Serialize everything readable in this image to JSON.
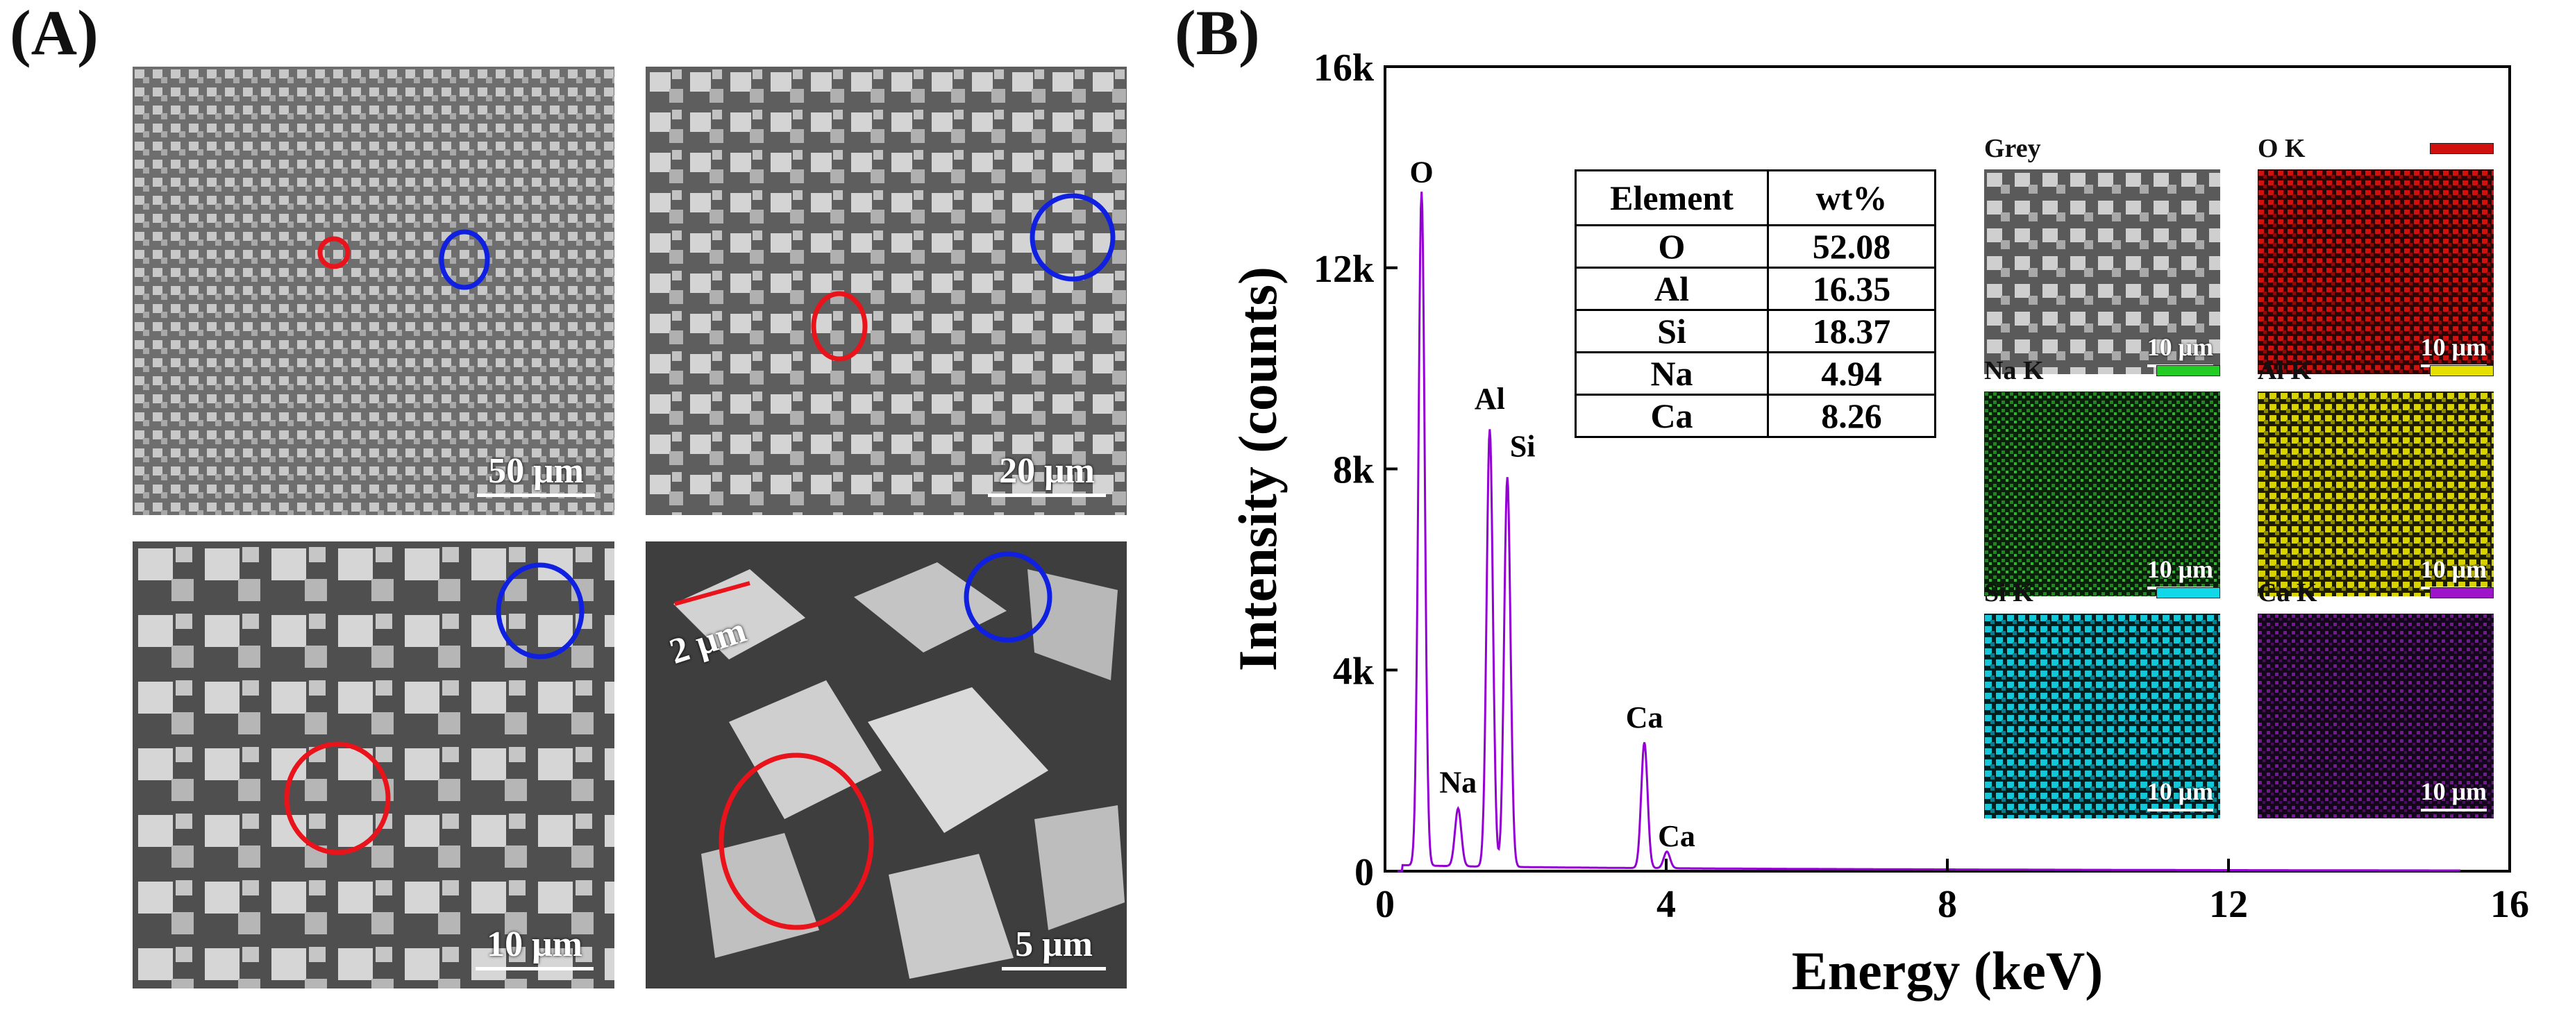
{
  "panels": {
    "a_label": "(A)",
    "b_label": "(B)"
  },
  "sem_images": [
    {
      "scale": "50 μm"
    },
    {
      "scale": "20 μm"
    },
    {
      "scale": "10 μm"
    },
    {
      "scale": "5 μm",
      "measure": "2 μm"
    }
  ],
  "colors": {
    "spectrum": "#9400d3",
    "marker_red": "#e8131b",
    "marker_blue": "#1020e0",
    "O": "#d11010",
    "Na": "#22cc22",
    "Al": "#e6e000",
    "Si": "#10d8e8",
    "Ca": "#9e14c8"
  },
  "table": {
    "headers": [
      "Element",
      "wt%"
    ],
    "rows": [
      [
        "O",
        "52.08"
      ],
      [
        "Al",
        "16.35"
      ],
      [
        "Si",
        "18.37"
      ],
      [
        "Na",
        "4.94"
      ],
      [
        "Ca",
        "8.26"
      ]
    ]
  },
  "maps": [
    {
      "title": "Grey",
      "scale": "10 μm",
      "key": "Grey"
    },
    {
      "title": "O K",
      "scale": "10 μm",
      "key": "O"
    },
    {
      "title": "Na K",
      "scale": "10 μm",
      "key": "Na"
    },
    {
      "title": "Al K",
      "scale": "10 μm",
      "key": "Al"
    },
    {
      "title": "Si K",
      "scale": "10 μm",
      "key": "Si"
    },
    {
      "title": "Ca K",
      "scale": "10 μm",
      "key": "Ca"
    }
  ],
  "chart_data": {
    "type": "line",
    "title": "",
    "xlabel": "Energy (keV)",
    "ylabel": "Intensity (counts)",
    "xlim": [
      0,
      16
    ],
    "ylim": [
      0,
      16000
    ],
    "xticks": [
      0,
      4,
      8,
      12,
      16
    ],
    "xtick_labels": [
      "0",
      "4",
      "8",
      "12",
      "16"
    ],
    "yticks": [
      0,
      4000,
      8000,
      12000,
      16000
    ],
    "ytick_labels": [
      "0",
      "4k",
      "8k",
      "12k",
      "16k"
    ],
    "peaks": [
      {
        "label": "O",
        "energy": 0.52,
        "counts": 13400
      },
      {
        "label": "Na",
        "energy": 1.04,
        "counts": 1150
      },
      {
        "label": "Al",
        "energy": 1.49,
        "counts": 8700
      },
      {
        "label": "Si",
        "energy": 1.74,
        "counts": 7750
      },
      {
        "label": "Ca",
        "energy": 3.69,
        "counts": 2500
      },
      {
        "label": "Ca",
        "energy": 4.01,
        "counts": 330
      }
    ],
    "baseline": 90
  }
}
